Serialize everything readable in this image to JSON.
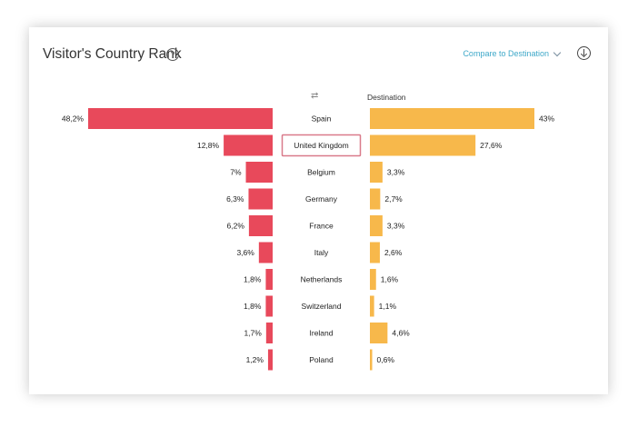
{
  "header": {
    "title": "Visitor's Country Rank",
    "help_glyph": "?",
    "compare_label": "Compare to Destination"
  },
  "icons": {
    "help": "question-circle-icon",
    "compare_dropdown": "chevron-down-icon",
    "download": "download-circle-icon",
    "swap": "swap-arrows-icon"
  },
  "colors": {
    "visitors": "#e8495b",
    "destination": "#f7b84b",
    "highlight_border": "#d97a8a",
    "accent_link": "#3ea8c9"
  },
  "swap_glyph": "⇄",
  "chart_data": {
    "type": "bar",
    "orientation": "horizontal-butterfly",
    "categories": [
      "Spain",
      "United Kingdom",
      "Belgium",
      "Germany",
      "France",
      "Italy",
      "Netherlands",
      "Switzerland",
      "Ireland",
      "Poland"
    ],
    "highlighted_category": "United Kingdom",
    "series": [
      {
        "values": [
          48.2,
          12.8,
          7,
          6.3,
          6.2,
          3.6,
          1.8,
          1.8,
          1.7,
          1.2
        ],
        "labels": [
          "48,2%",
          "12,8%",
          "7%",
          "6,3%",
          "6,2%",
          "3,6%",
          "1,8%",
          "1,8%",
          "1,7%",
          "1,2%"
        ]
      },
      {
        "name": "Destination",
        "values": [
          43,
          27.6,
          3.3,
          2.7,
          3.3,
          2.6,
          1.6,
          1.1,
          4.6,
          0.6
        ],
        "labels": [
          "43%",
          "27,6%",
          "3,3%",
          "2,7%",
          "3,3%",
          "2,6%",
          "1,6%",
          "1,1%",
          "4,6%",
          "0,6%"
        ]
      }
    ]
  }
}
